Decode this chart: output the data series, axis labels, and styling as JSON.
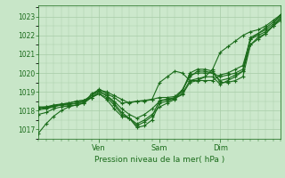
{
  "background_color": "#c8e6c8",
  "plot_bg_color": "#cce8cc",
  "grid_color": "#a8cca8",
  "line_color": "#1a6b1a",
  "marker_color": "#1a6b1a",
  "ylabel_ticks": [
    1017,
    1018,
    1019,
    1020,
    1021,
    1022,
    1023
  ],
  "ylim": [
    1016.5,
    1023.6
  ],
  "xlim": [
    0,
    96
  ],
  "xlabel": "Pression niveau de la mer( hPa )",
  "day_ticks": [
    {
      "x": 24,
      "label": "Ven"
    },
    {
      "x": 48,
      "label": "Sam"
    },
    {
      "x": 72,
      "label": "Dim"
    }
  ],
  "series": [
    {
      "x": [
        0,
        3,
        6,
        9,
        12,
        15,
        18,
        21,
        24,
        27,
        30,
        33,
        36,
        39,
        42,
        45,
        48,
        51,
        54,
        57,
        60,
        63,
        66,
        69,
        72,
        75,
        78,
        81,
        84,
        87,
        90,
        93,
        96
      ],
      "y": [
        1016.8,
        1017.3,
        1017.7,
        1018.0,
        1018.2,
        1018.3,
        1018.4,
        1018.9,
        1019.1,
        1019.0,
        1018.8,
        1018.6,
        1018.4,
        1018.5,
        1018.55,
        1018.6,
        1019.5,
        1019.8,
        1020.1,
        1020.0,
        1019.6,
        1019.6,
        1019.8,
        1020.2,
        1021.1,
        1021.4,
        1021.7,
        1022.0,
        1022.2,
        1022.3,
        1022.5,
        1022.8,
        1023.1
      ]
    },
    {
      "x": [
        0,
        3,
        6,
        9,
        12,
        15,
        18,
        21,
        24,
        27,
        30,
        33,
        36,
        39,
        42,
        45,
        48,
        51,
        54,
        57,
        60,
        63,
        66,
        69,
        72,
        75,
        78,
        81,
        84,
        87,
        90,
        93,
        96
      ],
      "y": [
        1018.15,
        1018.2,
        1018.3,
        1018.35,
        1018.4,
        1018.5,
        1018.55,
        1018.7,
        1019.0,
        1018.8,
        1018.5,
        1018.1,
        1017.8,
        1017.6,
        1017.8,
        1018.1,
        1018.5,
        1018.6,
        1018.7,
        1019.0,
        1020.0,
        1020.2,
        1020.2,
        1020.1,
        1019.5,
        1019.5,
        1019.6,
        1019.8,
        1021.5,
        1021.9,
        1022.1,
        1022.5,
        1022.8
      ]
    },
    {
      "x": [
        0,
        3,
        6,
        9,
        12,
        15,
        18,
        21,
        24,
        27,
        30,
        33,
        36,
        39,
        42,
        45,
        48,
        51,
        54,
        57,
        60,
        63,
        66,
        69,
        72,
        75,
        78,
        81,
        84,
        87,
        90,
        93,
        96
      ],
      "y": [
        1018.1,
        1018.15,
        1018.2,
        1018.3,
        1018.35,
        1018.4,
        1018.5,
        1018.8,
        1019.05,
        1018.8,
        1018.4,
        1017.9,
        1017.6,
        1017.3,
        1017.5,
        1017.8,
        1018.2,
        1018.4,
        1018.6,
        1019.1,
        1019.8,
        1020.1,
        1020.1,
        1020.0,
        1019.6,
        1019.7,
        1019.9,
        1020.1,
        1021.8,
        1022.0,
        1022.2,
        1022.5,
        1023.0
      ]
    },
    {
      "x": [
        0,
        3,
        6,
        9,
        12,
        15,
        18,
        21,
        24,
        27,
        30,
        33,
        36,
        39,
        42,
        45,
        48,
        51,
        54,
        57,
        60,
        63,
        66,
        69,
        72,
        75,
        78,
        81,
        84,
        87,
        90,
        93,
        96
      ],
      "y": [
        1018.2,
        1018.2,
        1018.25,
        1018.3,
        1018.3,
        1018.4,
        1018.45,
        1018.7,
        1018.9,
        1018.7,
        1018.3,
        1017.8,
        1017.6,
        1017.2,
        1017.4,
        1017.7,
        1018.55,
        1018.6,
        1018.65,
        1018.85,
        1019.5,
        1019.6,
        1019.6,
        1019.6,
        1019.9,
        1020.0,
        1020.2,
        1020.4,
        1021.8,
        1022.1,
        1022.3,
        1022.6,
        1023.1
      ]
    },
    {
      "x": [
        0,
        3,
        6,
        9,
        12,
        15,
        18,
        21,
        24,
        27,
        30,
        33,
        36,
        39,
        42,
        45,
        48,
        51,
        54,
        57,
        60,
        63,
        66,
        69,
        72,
        75,
        78,
        81,
        84,
        87,
        90,
        93,
        96
      ],
      "y": [
        1017.8,
        1017.9,
        1018.1,
        1018.2,
        1018.25,
        1018.3,
        1018.4,
        1018.7,
        1018.9,
        1018.6,
        1018.1,
        1017.7,
        1017.6,
        1017.1,
        1017.2,
        1017.5,
        1018.4,
        1018.5,
        1018.65,
        1018.9,
        1019.6,
        1019.7,
        1019.8,
        1019.8,
        1019.4,
        1019.6,
        1019.8,
        1020.1,
        1021.5,
        1021.8,
        1022.1,
        1022.5,
        1022.9
      ]
    },
    {
      "x": [
        0,
        3,
        6,
        9,
        12,
        15,
        18,
        21,
        24,
        27,
        30,
        33,
        36,
        39,
        42,
        45,
        48,
        51,
        54,
        57,
        60,
        63,
        66,
        69,
        72,
        75,
        78,
        81,
        84,
        87,
        90,
        93,
        96
      ],
      "y": [
        1018.05,
        1018.1,
        1018.2,
        1018.35,
        1018.4,
        1018.5,
        1018.55,
        1018.8,
        1019.15,
        1018.9,
        1018.7,
        1018.4,
        1018.45,
        1018.5,
        1018.5,
        1018.6,
        1018.7,
        1018.7,
        1018.75,
        1019.1,
        1019.9,
        1020.0,
        1020.0,
        1020.0,
        1019.8,
        1019.9,
        1020.0,
        1020.2,
        1021.9,
        1022.1,
        1022.4,
        1022.7,
        1023.1
      ]
    }
  ]
}
